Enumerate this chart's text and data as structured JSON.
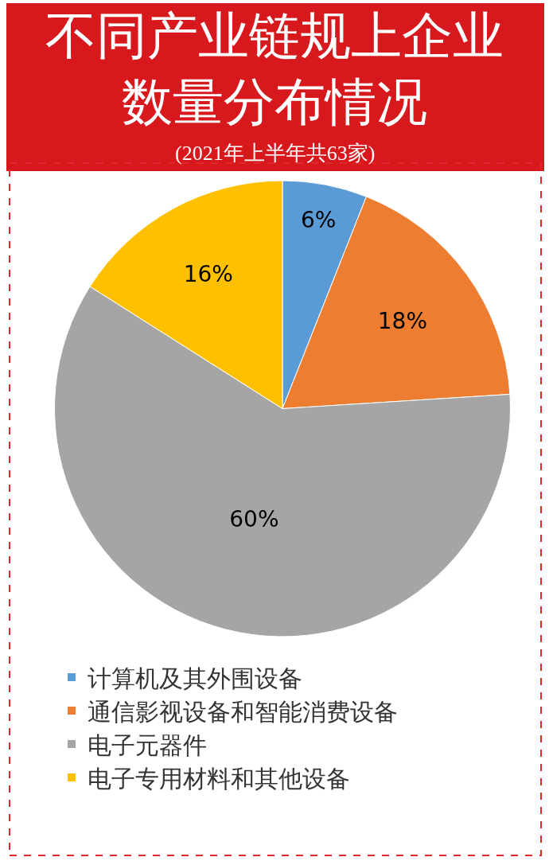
{
  "chart_data": {
    "type": "pie",
    "title": "不同产业链规上企业数量分布情况",
    "subtitle": "(2021年上半年共63家)",
    "categories": [
      "计算机及其外围设备",
      "通信影视设备和智能消费设备",
      "电子元器件",
      "电子专用材料和其他设备"
    ],
    "values": [
      6,
      18,
      60,
      16
    ],
    "colors": [
      "#5b9bd5",
      "#ed7d31",
      "#a5a5a5",
      "#ffc000"
    ],
    "value_labels": [
      "6%",
      "18%",
      "60%",
      "16%"
    ],
    "legend": "bottom"
  }
}
